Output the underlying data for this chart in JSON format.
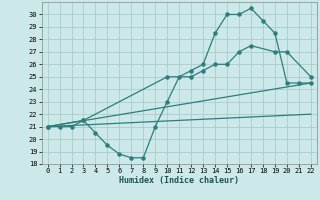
{
  "bg_color": "#cce8e8",
  "grid_color": "#aacccc",
  "line_color": "#2e7d7d",
  "xlabel": "Humidex (Indice chaleur)",
  "ylim": [
    18,
    31
  ],
  "xlim": [
    -0.5,
    22.5
  ],
  "yticks": [
    18,
    19,
    20,
    21,
    22,
    23,
    24,
    25,
    26,
    27,
    28,
    29,
    30
  ],
  "xticks": [
    0,
    1,
    2,
    3,
    4,
    5,
    6,
    7,
    8,
    9,
    10,
    11,
    12,
    13,
    14,
    15,
    16,
    17,
    18,
    19,
    20,
    21,
    22
  ],
  "line1_x": [
    0,
    1,
    2,
    3,
    4,
    5,
    6,
    7,
    8,
    9,
    10,
    11,
    12,
    13,
    14,
    15,
    16,
    17,
    18,
    19,
    20,
    21,
    22
  ],
  "line1_y": [
    21,
    21,
    21,
    21.5,
    20.5,
    19.5,
    18.8,
    18.5,
    18.5,
    21,
    23,
    25,
    25.5,
    26,
    28.5,
    30,
    30,
    30.5,
    29.5,
    28.5,
    24.5,
    24.5,
    24.5
  ],
  "line2_x": [
    0,
    3,
    10,
    12,
    13,
    14,
    15,
    16,
    17,
    19,
    20,
    22
  ],
  "line2_y": [
    21,
    21.5,
    25,
    25,
    25.5,
    26,
    26,
    27,
    27.5,
    27,
    27,
    25
  ],
  "line3_x": [
    0,
    22
  ],
  "line3_y": [
    21,
    24.5
  ],
  "line4_x": [
    0,
    22
  ],
  "line4_y": [
    21,
    22
  ]
}
